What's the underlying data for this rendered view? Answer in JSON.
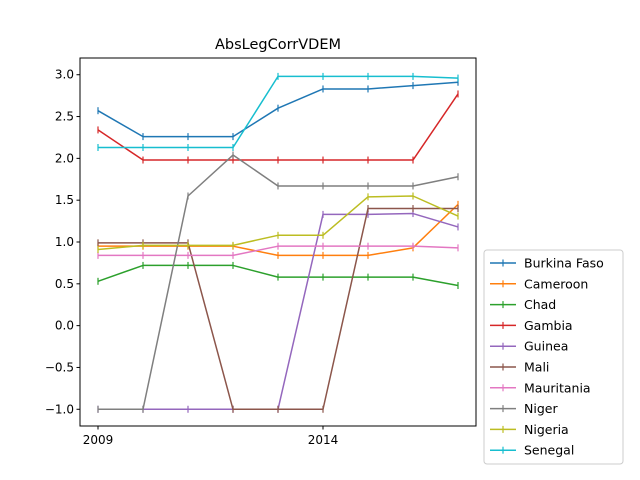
{
  "chart_data": {
    "type": "line",
    "title": "AbsLegCorrVDEM",
    "xlabel": "",
    "ylabel": "",
    "x": [
      2009,
      2010,
      2011,
      2012,
      2013,
      2014,
      2015,
      2016,
      2017
    ],
    "xlim": [
      2008.6,
      2017.4
    ],
    "ylim": [
      -1.2,
      3.2
    ],
    "xticks": [
      2009,
      2014
    ],
    "xtick_labels": [
      "2009",
      "2014"
    ],
    "yticks": [
      -1.0,
      -0.5,
      0.0,
      0.5,
      1.0,
      1.5,
      2.0,
      2.5,
      3.0
    ],
    "ytick_labels": [
      "−1.0",
      "−0.5",
      "0.0",
      "0.5",
      "1.0",
      "1.5",
      "2.0",
      "2.5",
      "3.0"
    ],
    "grid": false,
    "legend_position": "outside-right-bottom",
    "series": [
      {
        "name": "Burkina Faso",
        "color": "#1f77b4",
        "values": [
          2.57,
          2.26,
          2.26,
          2.26,
          2.6,
          2.83,
          2.83,
          2.87,
          2.91
        ]
      },
      {
        "name": "Cameroon",
        "color": "#ff7f0e",
        "values": [
          0.95,
          0.95,
          0.95,
          0.95,
          0.84,
          0.84,
          0.84,
          0.93,
          1.45
        ]
      },
      {
        "name": "Chad",
        "color": "#2ca02c",
        "values": [
          0.53,
          0.72,
          0.72,
          0.72,
          0.58,
          0.58,
          0.58,
          0.58,
          0.48
        ]
      },
      {
        "name": "Gambia",
        "color": "#d62728",
        "values": [
          2.34,
          1.98,
          1.98,
          1.98,
          1.98,
          1.98,
          1.98,
          1.98,
          2.77
        ]
      },
      {
        "name": "Guinea",
        "color": "#9467bd",
        "values": [
          -1.0,
          -1.0,
          -1.0,
          -1.0,
          -1.0,
          1.33,
          1.33,
          1.34,
          1.18
        ]
      },
      {
        "name": "Mali",
        "color": "#8c564b",
        "values": [
          0.99,
          0.99,
          0.99,
          -1.0,
          -1.0,
          -1.0,
          1.4,
          1.4,
          1.4
        ]
      },
      {
        "name": "Mauritania",
        "color": "#e377c2",
        "values": [
          0.84,
          0.84,
          0.84,
          0.84,
          0.95,
          0.95,
          0.95,
          0.95,
          0.93
        ]
      },
      {
        "name": "Niger",
        "color": "#7f7f7f",
        "values": [
          -1.0,
          -1.0,
          1.55,
          2.04,
          1.67,
          1.67,
          1.67,
          1.67,
          1.78
        ]
      },
      {
        "name": "Nigeria",
        "color": "#bcbd22",
        "values": [
          0.91,
          0.96,
          0.96,
          0.96,
          1.08,
          1.08,
          1.54,
          1.55,
          1.31
        ]
      },
      {
        "name": "Senegal",
        "color": "#17becf",
        "values": [
          2.13,
          2.13,
          2.13,
          2.13,
          2.98,
          2.98,
          2.98,
          2.98,
          2.96
        ]
      }
    ]
  }
}
